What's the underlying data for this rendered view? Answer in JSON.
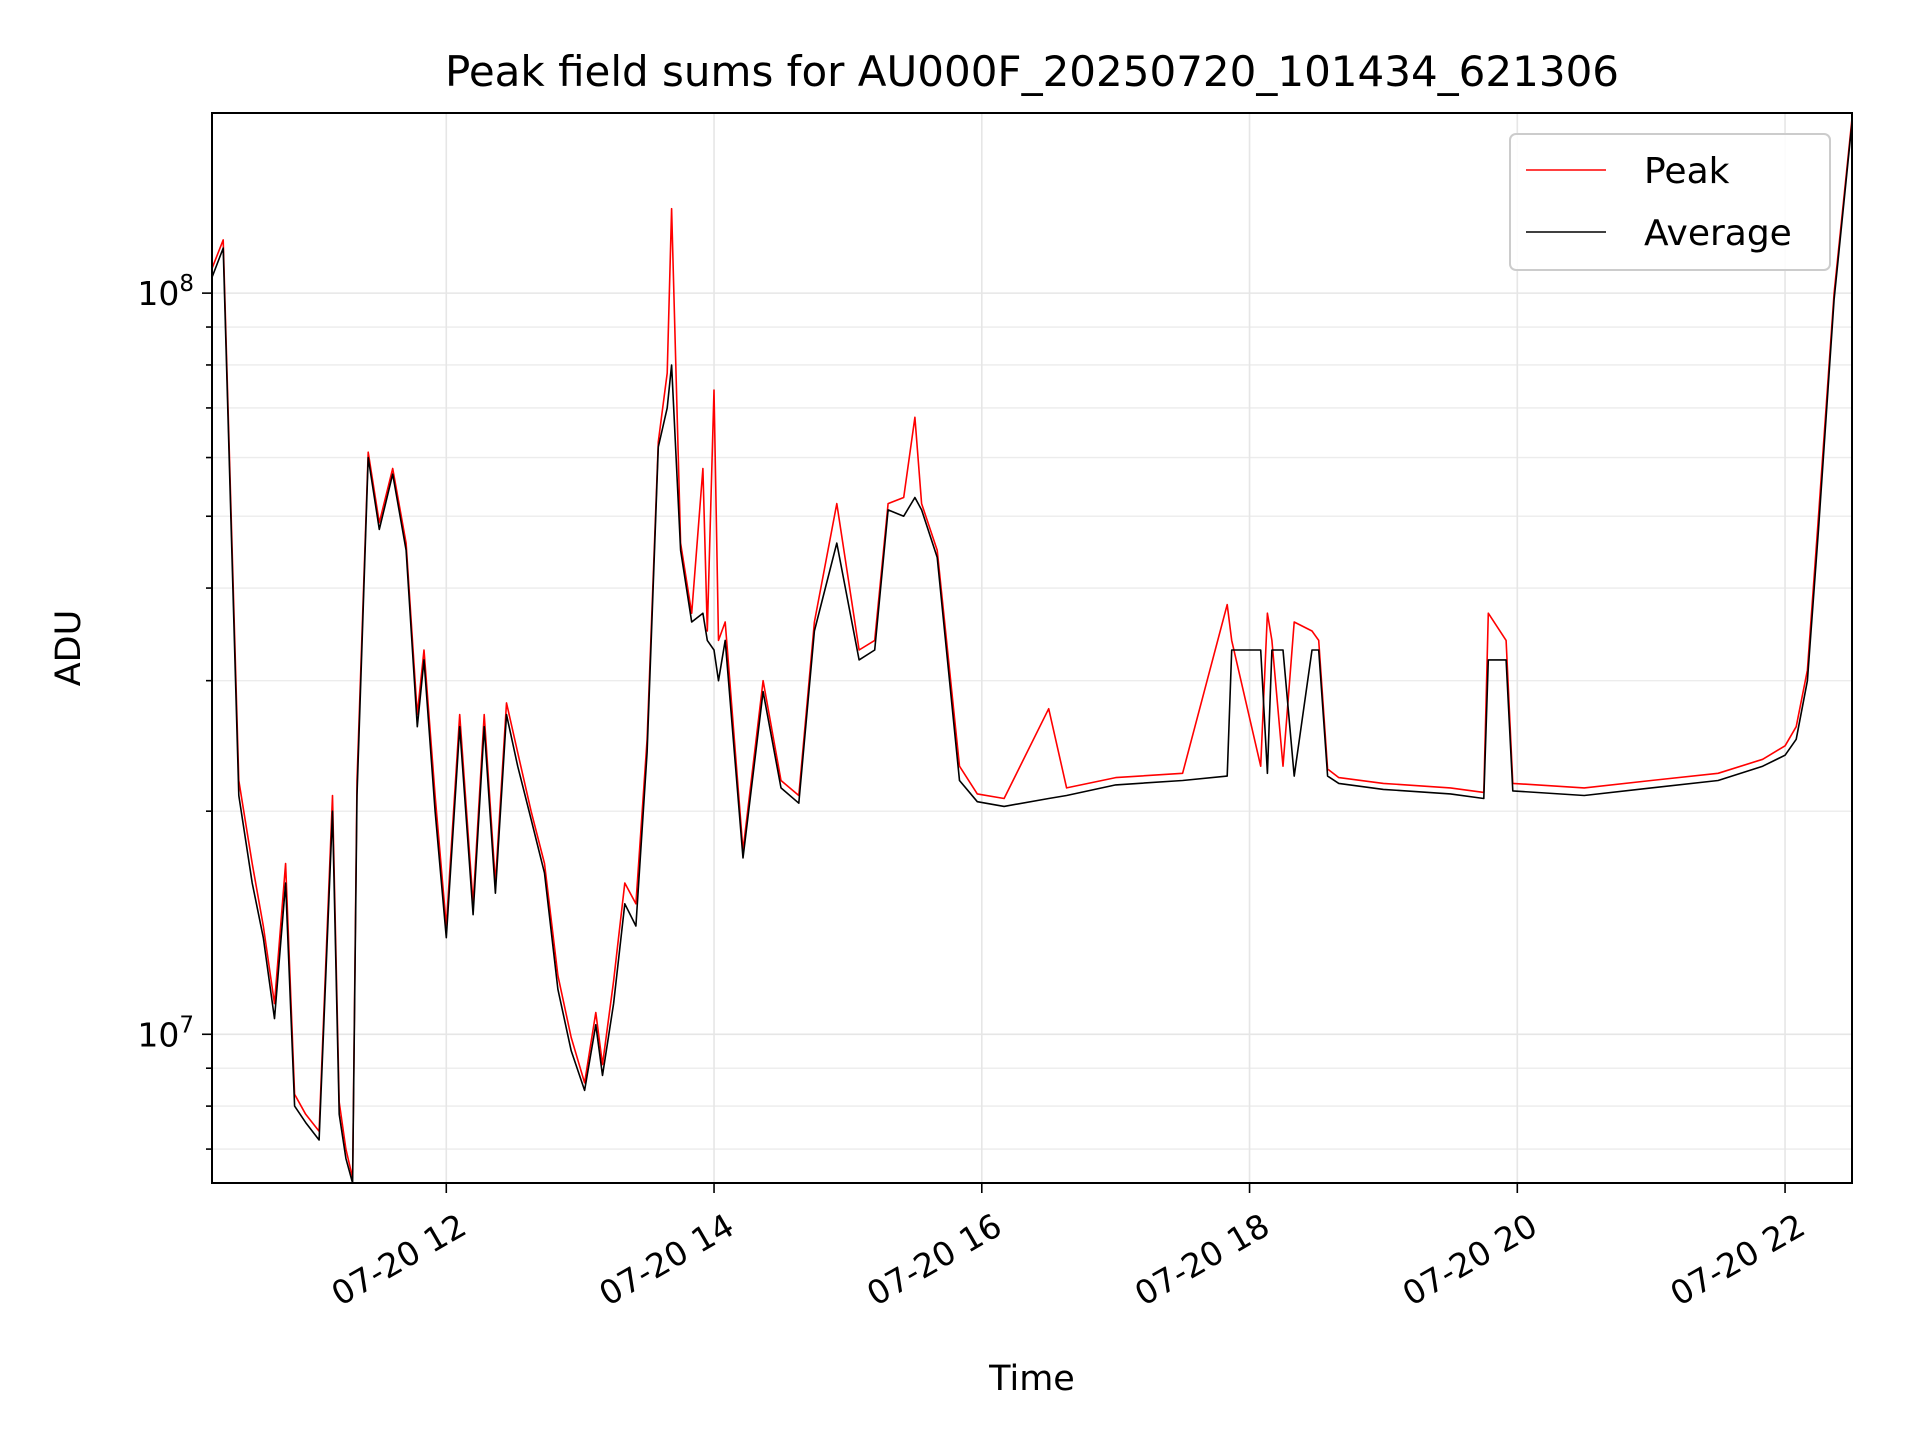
{
  "chart_data": {
    "type": "line",
    "title": "Peak field sums for AU000F_20250720_101434_621306",
    "xlabel": "Time",
    "ylabel": "ADU",
    "x_type": "datetime",
    "xlim": [
      "2025-07-20 10:15",
      "2025-07-20 22:30"
    ],
    "x_ticks": [
      {
        "value": "2025-07-20 12:00",
        "label": "07-20 12"
      },
      {
        "value": "2025-07-20 14:00",
        "label": "07-20 14"
      },
      {
        "value": "2025-07-20 16:00",
        "label": "07-20 16"
      },
      {
        "value": "2025-07-20 18:00",
        "label": "07-20 18"
      },
      {
        "value": "2025-07-20 20:00",
        "label": "07-20 20"
      },
      {
        "value": "2025-07-20 22:00",
        "label": "07-20 22"
      }
    ],
    "yscale": "log",
    "ylim": [
      6300000,
      175000000
    ],
    "y_ticks": [
      {
        "value": 10000000,
        "base": "10",
        "exp": "7"
      },
      {
        "value": 100000000,
        "base": "10",
        "exp": "8"
      }
    ],
    "y_minor_ticks": [
      7000000,
      8000000,
      9000000,
      20000000,
      30000000,
      40000000,
      50000000,
      60000000,
      70000000,
      80000000,
      90000000
    ],
    "grid": true,
    "legend_position": "upper right",
    "colors": {
      "peak": "#ff0000",
      "average": "#000000"
    },
    "series": [
      {
        "name": "Peak",
        "color": "#ff0000",
        "x": [
          "2025-07-20 10:15",
          "2025-07-20 10:20",
          "2025-07-20 10:27",
          "2025-07-20 10:33",
          "2025-07-20 10:38",
          "2025-07-20 10:43",
          "2025-07-20 10:48",
          "2025-07-20 10:52",
          "2025-07-20 10:57",
          "2025-07-20 11:03",
          "2025-07-20 11:09",
          "2025-07-20 11:12",
          "2025-07-20 11:15",
          "2025-07-20 11:18",
          "2025-07-20 11:20",
          "2025-07-20 11:25",
          "2025-07-20 11:30",
          "2025-07-20 11:36",
          "2025-07-20 11:42",
          "2025-07-20 11:47",
          "2025-07-20 11:50",
          "2025-07-20 11:55",
          "2025-07-20 12:00",
          "2025-07-20 12:06",
          "2025-07-20 12:12",
          "2025-07-20 12:17",
          "2025-07-20 12:22",
          "2025-07-20 12:27",
          "2025-07-20 12:32",
          "2025-07-20 12:38",
          "2025-07-20 12:44",
          "2025-07-20 12:50",
          "2025-07-20 12:56",
          "2025-07-20 13:02",
          "2025-07-20 13:07",
          "2025-07-20 13:10",
          "2025-07-20 13:15",
          "2025-07-20 13:20",
          "2025-07-20 13:25",
          "2025-07-20 13:30",
          "2025-07-20 13:35",
          "2025-07-20 13:39",
          "2025-07-20 13:41",
          "2025-07-20 13:45",
          "2025-07-20 13:50",
          "2025-07-20 13:55",
          "2025-07-20 13:57",
          "2025-07-20 14:00",
          "2025-07-20 14:02",
          "2025-07-20 14:05",
          "2025-07-20 14:13",
          "2025-07-20 14:22",
          "2025-07-20 14:30",
          "2025-07-20 14:38",
          "2025-07-20 14:45",
          "2025-07-20 14:55",
          "2025-07-20 15:05",
          "2025-07-20 15:12",
          "2025-07-20 15:18",
          "2025-07-20 15:25",
          "2025-07-20 15:30",
          "2025-07-20 15:33",
          "2025-07-20 15:40",
          "2025-07-20 15:50",
          "2025-07-20 15:58",
          "2025-07-20 16:10",
          "2025-07-20 16:30",
          "2025-07-20 16:38",
          "2025-07-20 17:00",
          "2025-07-20 17:30",
          "2025-07-20 17:50",
          "2025-07-20 17:52",
          "2025-07-20 18:05",
          "2025-07-20 18:08",
          "2025-07-20 18:10",
          "2025-07-20 18:15",
          "2025-07-20 18:20",
          "2025-07-20 18:28",
          "2025-07-20 18:31",
          "2025-07-20 18:35",
          "2025-07-20 18:40",
          "2025-07-20 19:00",
          "2025-07-20 19:30",
          "2025-07-20 19:45",
          "2025-07-20 19:47",
          "2025-07-20 19:55",
          "2025-07-20 19:58",
          "2025-07-20 20:30",
          "2025-07-20 21:00",
          "2025-07-20 21:30",
          "2025-07-20 21:50",
          "2025-07-20 22:00",
          "2025-07-20 22:05",
          "2025-07-20 22:10",
          "2025-07-20 22:15",
          "2025-07-20 22:22",
          "2025-07-20 22:30"
        ],
        "y": [
          108000000,
          118000000,
          22000000,
          17000000,
          14000000,
          11000000,
          17000000,
          8300000,
          7800000,
          7400000,
          21000000,
          8100000,
          7000000,
          6400000,
          22000000,
          61000000,
          49000000,
          58000000,
          46000000,
          27000000,
          33000000,
          21000000,
          14000000,
          27000000,
          15000000,
          27000000,
          16000000,
          28000000,
          24000000,
          20000000,
          17000000,
          12000000,
          9900000,
          8600000,
          10700000,
          9100000,
          11800000,
          16000000,
          15000000,
          25000000,
          63000000,
          78000000,
          130000000,
          46000000,
          37000000,
          58000000,
          35000000,
          74000000,
          34000000,
          36000000,
          17700000,
          30000000,
          22000000,
          21000000,
          36000000,
          52000000,
          33000000,
          34000000,
          52000000,
          53000000,
          68000000,
          52000000,
          45000000,
          23000000,
          21100000,
          20800000,
          27500000,
          21500000,
          22200000,
          22500000,
          38000000,
          34000000,
          23000000,
          37000000,
          34000000,
          23000000,
          36000000,
          35000000,
          34000000,
          22800000,
          22200000,
          21800000,
          21500000,
          21200000,
          37000000,
          34000000,
          21800000,
          21500000,
          22000000,
          22500000,
          23500000,
          24500000,
          26000000,
          31000000,
          50000000,
          100000000,
          172000000
        ]
      },
      {
        "name": "Average",
        "color": "#000000",
        "x": [
          "2025-07-20 10:15",
          "2025-07-20 10:20",
          "2025-07-20 10:27",
          "2025-07-20 10:33",
          "2025-07-20 10:38",
          "2025-07-20 10:43",
          "2025-07-20 10:48",
          "2025-07-20 10:52",
          "2025-07-20 10:57",
          "2025-07-20 11:03",
          "2025-07-20 11:09",
          "2025-07-20 11:12",
          "2025-07-20 11:15",
          "2025-07-20 11:18",
          "2025-07-20 11:20",
          "2025-07-20 11:25",
          "2025-07-20 11:30",
          "2025-07-20 11:36",
          "2025-07-20 11:42",
          "2025-07-20 11:47",
          "2025-07-20 11:50",
          "2025-07-20 11:55",
          "2025-07-20 12:00",
          "2025-07-20 12:06",
          "2025-07-20 12:12",
          "2025-07-20 12:17",
          "2025-07-20 12:22",
          "2025-07-20 12:27",
          "2025-07-20 12:32",
          "2025-07-20 12:38",
          "2025-07-20 12:44",
          "2025-07-20 12:50",
          "2025-07-20 12:56",
          "2025-07-20 13:02",
          "2025-07-20 13:07",
          "2025-07-20 13:10",
          "2025-07-20 13:15",
          "2025-07-20 13:20",
          "2025-07-20 13:25",
          "2025-07-20 13:30",
          "2025-07-20 13:35",
          "2025-07-20 13:39",
          "2025-07-20 13:41",
          "2025-07-20 13:45",
          "2025-07-20 13:50",
          "2025-07-20 13:55",
          "2025-07-20 13:57",
          "2025-07-20 14:00",
          "2025-07-20 14:02",
          "2025-07-20 14:05",
          "2025-07-20 14:13",
          "2025-07-20 14:22",
          "2025-07-20 14:30",
          "2025-07-20 14:38",
          "2025-07-20 14:45",
          "2025-07-20 14:55",
          "2025-07-20 15:05",
          "2025-07-20 15:12",
          "2025-07-20 15:18",
          "2025-07-20 15:25",
          "2025-07-20 15:30",
          "2025-07-20 15:33",
          "2025-07-20 15:40",
          "2025-07-20 15:50",
          "2025-07-20 15:58",
          "2025-07-20 16:10",
          "2025-07-20 16:30",
          "2025-07-20 16:38",
          "2025-07-20 17:00",
          "2025-07-20 17:30",
          "2025-07-20 17:50",
          "2025-07-20 17:52",
          "2025-07-20 18:05",
          "2025-07-20 18:08",
          "2025-07-20 18:10",
          "2025-07-20 18:15",
          "2025-07-20 18:20",
          "2025-07-20 18:28",
          "2025-07-20 18:31",
          "2025-07-20 18:35",
          "2025-07-20 18:40",
          "2025-07-20 19:00",
          "2025-07-20 19:30",
          "2025-07-20 19:45",
          "2025-07-20 19:47",
          "2025-07-20 19:55",
          "2025-07-20 19:58",
          "2025-07-20 20:30",
          "2025-07-20 21:00",
          "2025-07-20 21:30",
          "2025-07-20 21:50",
          "2025-07-20 22:00",
          "2025-07-20 22:05",
          "2025-07-20 22:10",
          "2025-07-20 22:15",
          "2025-07-20 22:22",
          "2025-07-20 22:30"
        ],
        "y": [
          105000000,
          115000000,
          21000000,
          16000000,
          13500000,
          10500000,
          16000000,
          8000000,
          7600000,
          7200000,
          20000000,
          7800000,
          6800000,
          6300000,
          21000000,
          60000000,
          48000000,
          57000000,
          45000000,
          26000000,
          32000000,
          20000000,
          13500000,
          26000000,
          14500000,
          26000000,
          15500000,
          27000000,
          23000000,
          19500000,
          16500000,
          11500000,
          9500000,
          8400000,
          10300000,
          8800000,
          11000000,
          15000000,
          14000000,
          24000000,
          62000000,
          70000000,
          80000000,
          45000000,
          36000000,
          37000000,
          34000000,
          33000000,
          30000000,
          34000000,
          17300000,
          29000000,
          21500000,
          20500000,
          35000000,
          46000000,
          32000000,
          33000000,
          51000000,
          50000000,
          53000000,
          51000000,
          44000000,
          22000000,
          20600000,
          20300000,
          20800000,
          21000000,
          21700000,
          22000000,
          22300000,
          33000000,
          33000000,
          22500000,
          33000000,
          33000000,
          22300000,
          33000000,
          33000000,
          22300000,
          21800000,
          21400000,
          21100000,
          20800000,
          32000000,
          32000000,
          21300000,
          21000000,
          21500000,
          22000000,
          23000000,
          23800000,
          25000000,
          30000000,
          48000000,
          98000000,
          170000000
        ]
      }
    ]
  }
}
